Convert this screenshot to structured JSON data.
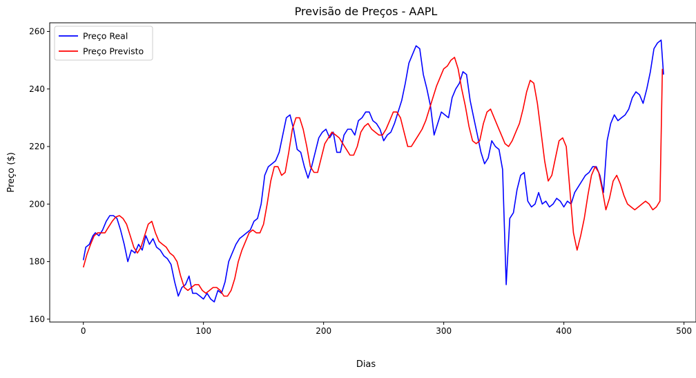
{
  "chart_data": {
    "type": "line",
    "title": "Previsão de Preços - AAPL",
    "xlabel": "Dias",
    "ylabel": "Preço ($)",
    "xlim": [
      -28,
      510
    ],
    "ylim": [
      159,
      263
    ],
    "xticks": [
      0,
      100,
      200,
      300,
      400,
      500
    ],
    "yticks": [
      160,
      180,
      200,
      220,
      240,
      260
    ],
    "grid": false,
    "legend_position": "top-left",
    "series": [
      {
        "name": "Preço Real",
        "color": "#0000ff",
        "x": [
          0,
          2,
          5,
          8,
          10,
          13,
          16,
          19,
          22,
          25,
          28,
          31,
          34,
          37,
          40,
          43,
          46,
          49,
          52,
          55,
          58,
          61,
          64,
          67,
          70,
          73,
          76,
          79,
          82,
          85,
          88,
          91,
          94,
          97,
          100,
          103,
          106,
          109,
          112,
          115,
          118,
          121,
          124,
          127,
          130,
          133,
          136,
          139,
          142,
          145,
          148,
          151,
          154,
          157,
          160,
          163,
          166,
          169,
          172,
          175,
          178,
          181,
          184,
          187,
          190,
          193,
          196,
          199,
          202,
          205,
          208,
          211,
          214,
          217,
          220,
          223,
          226,
          229,
          232,
          235,
          238,
          241,
          244,
          247,
          250,
          253,
          256,
          259,
          262,
          265,
          268,
          271,
          274,
          277,
          280,
          283,
          286,
          289,
          292,
          295,
          298,
          301,
          304,
          307,
          310,
          313,
          316,
          319,
          322,
          325,
          328,
          331,
          334,
          337,
          340,
          343,
          346,
          349,
          352,
          355,
          358,
          361,
          364,
          367,
          370,
          373,
          376,
          379,
          382,
          385,
          388,
          391,
          394,
          397,
          400,
          403,
          406,
          409,
          412,
          415,
          418,
          421,
          424,
          427,
          430,
          433,
          436,
          439,
          442,
          445,
          448,
          451,
          454,
          457,
          460,
          463,
          466,
          469,
          472,
          475,
          478,
          481,
          483
        ],
        "values": [
          180.5,
          185,
          186,
          189,
          190,
          189,
          191,
          194,
          196,
          196,
          195,
          191,
          186,
          180,
          184,
          183,
          186,
          184,
          189,
          186,
          188,
          185,
          184,
          182,
          181,
          179,
          173,
          168,
          171,
          172,
          175,
          169,
          169,
          168,
          167,
          169,
          167,
          166,
          170,
          169,
          173,
          180,
          183,
          186,
          188,
          189,
          190,
          191,
          194,
          195,
          200,
          210,
          213,
          214,
          215,
          218,
          224,
          230,
          231,
          226,
          219,
          218,
          213,
          209,
          213,
          218,
          223,
          225,
          226,
          223,
          225,
          218,
          218,
          224,
          226,
          226,
          224,
          229,
          230,
          232,
          232,
          229,
          228,
          226,
          222,
          224,
          225,
          228,
          232,
          236,
          242,
          249,
          252,
          255,
          254,
          245,
          240,
          234,
          224,
          228,
          232,
          231,
          230,
          237,
          240,
          242,
          246,
          245,
          236,
          230,
          224,
          218,
          214,
          216,
          222,
          220,
          219,
          212,
          172,
          195,
          197,
          205,
          210,
          211,
          201,
          199,
          200,
          204,
          200,
          201,
          199,
          200,
          202,
          201,
          199,
          201,
          200,
          204,
          206,
          208,
          210,
          211,
          213,
          213,
          210,
          204,
          222,
          228,
          231,
          229,
          230,
          231,
          233,
          237,
          239,
          238,
          235,
          240,
          246,
          254,
          256,
          257,
          245
        ]
      },
      {
        "name": "Preço Previsto",
        "color": "#ff0000",
        "x": [
          0,
          3,
          6,
          9,
          12,
          15,
          18,
          21,
          24,
          27,
          30,
          33,
          36,
          39,
          42,
          45,
          48,
          51,
          54,
          57,
          60,
          63,
          66,
          69,
          72,
          75,
          78,
          81,
          84,
          87,
          90,
          93,
          96,
          99,
          102,
          105,
          108,
          111,
          114,
          117,
          120,
          123,
          126,
          129,
          132,
          135,
          138,
          141,
          144,
          147,
          150,
          153,
          156,
          159,
          162,
          165,
          168,
          171,
          174,
          177,
          180,
          183,
          186,
          189,
          192,
          195,
          198,
          201,
          204,
          207,
          210,
          213,
          216,
          219,
          222,
          225,
          228,
          231,
          234,
          237,
          240,
          243,
          246,
          249,
          252,
          255,
          258,
          261,
          264,
          267,
          270,
          273,
          276,
          279,
          282,
          285,
          288,
          291,
          294,
          297,
          300,
          303,
          306,
          309,
          312,
          315,
          318,
          321,
          324,
          327,
          330,
          333,
          336,
          339,
          342,
          345,
          348,
          351,
          354,
          357,
          360,
          363,
          366,
          369,
          372,
          375,
          378,
          381,
          384,
          387,
          390,
          393,
          396,
          399,
          402,
          405,
          408,
          411,
          414,
          417,
          420,
          423,
          426,
          429,
          432,
          435,
          438,
          441,
          444,
          447,
          450,
          453,
          456,
          459,
          462,
          465,
          468,
          471,
          474,
          477,
          480,
          482
        ],
        "values": [
          178,
          182.5,
          186,
          189,
          190,
          190,
          190,
          192,
          194,
          195.5,
          196,
          195,
          193,
          189,
          185,
          183,
          185,
          189,
          193,
          194,
          190,
          187,
          186,
          185,
          183,
          182,
          180,
          175,
          171,
          170,
          171,
          172,
          172,
          170,
          169,
          170,
          171,
          171,
          170,
          168,
          168,
          170,
          174,
          180,
          184,
          187,
          190,
          191,
          190,
          190,
          193,
          200,
          208,
          213,
          213,
          210,
          211,
          218,
          226,
          230,
          230,
          226,
          220,
          213,
          211,
          211,
          216,
          221,
          223,
          225,
          224,
          223,
          221,
          219,
          217,
          217,
          220,
          225,
          227,
          228,
          226,
          225,
          224,
          224,
          226,
          229,
          232,
          232,
          230,
          225,
          220,
          220,
          222,
          224,
          226,
          229,
          233,
          237,
          241,
          244,
          247,
          248,
          250,
          251,
          247,
          240,
          234,
          227,
          222,
          221,
          222,
          228,
          232,
          233,
          230,
          227,
          224,
          221,
          220,
          222,
          225,
          228,
          233,
          239,
          243,
          242,
          235,
          225,
          215,
          208,
          210,
          216,
          222,
          223,
          220,
          205,
          190,
          184,
          189,
          195,
          203,
          210,
          213,
          211,
          205,
          198,
          202,
          208,
          210,
          207,
          203,
          200,
          199,
          198,
          199,
          200,
          201,
          200,
          198,
          199,
          201,
          247
        ]
      }
    ]
  }
}
